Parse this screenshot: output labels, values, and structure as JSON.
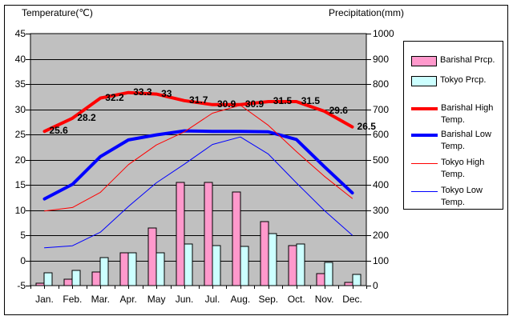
{
  "titles": {
    "temperature": "Temperature(℃)",
    "precipitation": "Precipitation(mm)"
  },
  "colors": {
    "plot_background": "#c0c0c0",
    "barishal_precip": "#ff99cc",
    "tokyo_precip": "#ccffff",
    "high_temp_line": "#ff0000",
    "low_temp_line": "#0000ff",
    "axis": "#000000"
  },
  "chart_data": {
    "type": "mixed-bar-line",
    "categories": [
      "Jan.",
      "Feb.",
      "Mar.",
      "Apr.",
      "May",
      "Jun.",
      "Jul.",
      "Aug.",
      "Sep.",
      "Oct.",
      "Nov.",
      "Dec."
    ],
    "temp_axis": {
      "title": "Temperature(℃)",
      "min": -5,
      "max": 45,
      "ticks": [
        45,
        40,
        35,
        30,
        25,
        20,
        15,
        10,
        5,
        0,
        -5
      ],
      "side": "left"
    },
    "precip_axis": {
      "title": "Precipitation(mm)",
      "min": 0,
      "max": 1000,
      "ticks": [
        1000,
        900,
        800,
        700,
        600,
        500,
        400,
        300,
        200,
        100,
        0
      ],
      "side": "right"
    },
    "grid": "horizontal",
    "plot_bg": "#c0c0c0",
    "series": [
      {
        "name": "Barishal Prcp.",
        "type": "bar",
        "axis": "precip",
        "color": "#ff99cc",
        "values": [
          10,
          26,
          55,
          130,
          230,
          410,
          410,
          370,
          255,
          160,
          48,
          13
        ]
      },
      {
        "name": "Tokyo Prcp.",
        "type": "bar",
        "axis": "precip",
        "color": "#ccffff",
        "values": [
          50,
          60,
          110,
          130,
          130,
          165,
          160,
          155,
          205,
          165,
          93,
          45
        ]
      },
      {
        "name": "Barishal High Temp.",
        "type": "line",
        "axis": "temp",
        "color": "#ff0000",
        "width": 4,
        "values": [
          25.6,
          28.2,
          32.2,
          33.3,
          33,
          31.7,
          30.9,
          30.9,
          31.5,
          31.5,
          29.6,
          26.5
        ],
        "point_labels": [
          "25.6",
          "28.2",
          "32.2",
          "33.3",
          "33",
          "31.7",
          "30.9",
          "30.9",
          "31.5",
          "31.5",
          "29.6",
          "26.5"
        ]
      },
      {
        "name": "Barishal Low Temp.",
        "type": "line",
        "axis": "temp",
        "color": "#0000ff",
        "width": 4,
        "values": [
          12.2,
          15.1,
          20.6,
          23.9,
          24.9,
          25.7,
          25.6,
          25.6,
          25.5,
          24,
          18.6,
          13.4
        ]
      },
      {
        "name": "Tokyo High Temp.",
        "type": "line",
        "axis": "temp",
        "color": "#ff0000",
        "width": 1,
        "values": [
          9.8,
          10.5,
          13.5,
          19,
          22.9,
          25.5,
          29.2,
          30.8,
          26.8,
          21.6,
          16.7,
          12.3
        ]
      },
      {
        "name": "Tokyo Low Temp.",
        "type": "line",
        "axis": "temp",
        "color": "#0000ff",
        "width": 1,
        "values": [
          2.5,
          2.9,
          5.6,
          10.7,
          15.4,
          19.1,
          23,
          24.5,
          21.1,
          15.4,
          9.9,
          5
        ]
      }
    ]
  },
  "legend": {
    "items": [
      {
        "label": "Barishal Prcp.",
        "swatch": "bar",
        "color": "#ff99cc"
      },
      {
        "label": "Tokyo Prcp.",
        "swatch": "bar",
        "color": "#ccffff"
      },
      {
        "label": "Barishal High Temp.",
        "swatch": "line",
        "color": "#ff0000",
        "weight": 4
      },
      {
        "label": "Barishal Low Temp.",
        "swatch": "line",
        "color": "#0000ff",
        "weight": 4
      },
      {
        "label": "Tokyo High Temp.",
        "swatch": "line",
        "color": "#ff0000",
        "weight": 1
      },
      {
        "label": "Tokyo Low Temp.",
        "swatch": "line",
        "color": "#0000ff",
        "weight": 1
      }
    ]
  }
}
